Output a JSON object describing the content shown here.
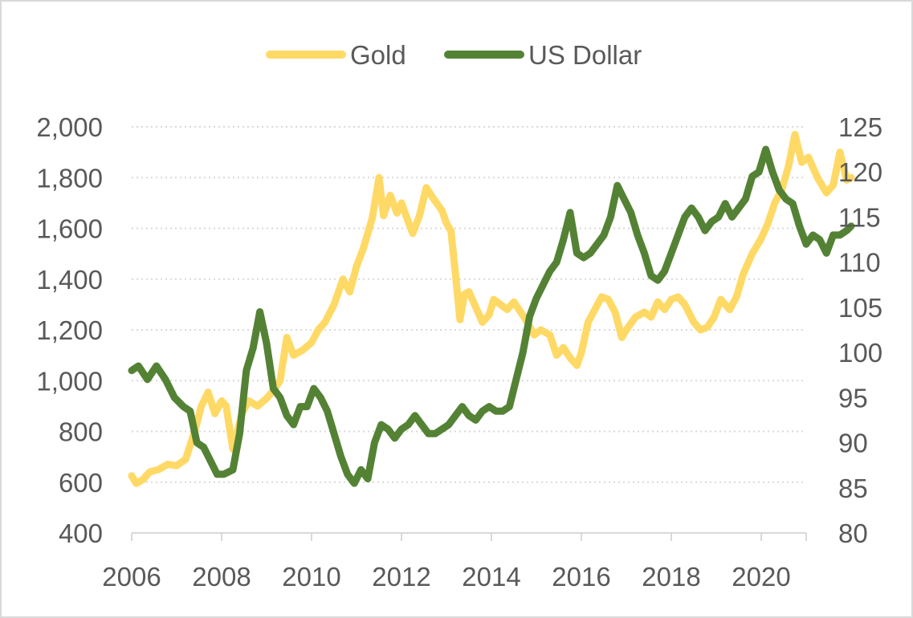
{
  "chart_data": {
    "type": "line",
    "title": "",
    "legend_position": "top",
    "grid": "horizontal dotted",
    "x": {
      "range": [
        2006,
        2021
      ],
      "tick_labels": [
        "2006",
        "2008",
        "2010",
        "2012",
        "2014",
        "2016",
        "2018",
        "2020"
      ],
      "tick_values": [
        2006,
        2008,
        2010,
        2012,
        2014,
        2016,
        2018,
        2020
      ]
    },
    "y_left": {
      "range": [
        400,
        2000
      ],
      "tick_labels": [
        "400",
        "600",
        "800",
        "1,000",
        "1,200",
        "1,400",
        "1,600",
        "1,800",
        "2,000"
      ],
      "tick_values": [
        400,
        600,
        800,
        1000,
        1200,
        1400,
        1600,
        1800,
        2000
      ]
    },
    "y_right": {
      "range": [
        80,
        125
      ],
      "tick_labels": [
        "80",
        "85",
        "90",
        "95",
        "100",
        "105",
        "110",
        "115",
        "120",
        "125"
      ],
      "tick_values": [
        80,
        85,
        90,
        95,
        100,
        105,
        110,
        115,
        120,
        125
      ]
    },
    "series": [
      {
        "name": "Gold",
        "axis": "left",
        "color": "#ffd966",
        "points": [
          [
            2006.0,
            625
          ],
          [
            2006.1,
            595
          ],
          [
            2006.25,
            610
          ],
          [
            2006.4,
            640
          ],
          [
            2006.6,
            650
          ],
          [
            2006.8,
            670
          ],
          [
            2007.0,
            665
          ],
          [
            2007.2,
            690
          ],
          [
            2007.4,
            800
          ],
          [
            2007.55,
            900
          ],
          [
            2007.7,
            955
          ],
          [
            2007.85,
            870
          ],
          [
            2008.0,
            920
          ],
          [
            2008.1,
            900
          ],
          [
            2008.25,
            730
          ],
          [
            2008.45,
            870
          ],
          [
            2008.6,
            920
          ],
          [
            2008.8,
            900
          ],
          [
            2009.0,
            930
          ],
          [
            2009.15,
            960
          ],
          [
            2009.3,
            1000
          ],
          [
            2009.45,
            1170
          ],
          [
            2009.6,
            1100
          ],
          [
            2009.8,
            1120
          ],
          [
            2010.0,
            1150
          ],
          [
            2010.15,
            1200
          ],
          [
            2010.3,
            1230
          ],
          [
            2010.5,
            1300
          ],
          [
            2010.7,
            1400
          ],
          [
            2010.85,
            1350
          ],
          [
            2011.0,
            1450
          ],
          [
            2011.15,
            1520
          ],
          [
            2011.35,
            1640
          ],
          [
            2011.5,
            1800
          ],
          [
            2011.6,
            1650
          ],
          [
            2011.75,
            1730
          ],
          [
            2011.9,
            1660
          ],
          [
            2012.0,
            1700
          ],
          [
            2012.1,
            1650
          ],
          [
            2012.25,
            1580
          ],
          [
            2012.4,
            1650
          ],
          [
            2012.55,
            1760
          ],
          [
            2012.7,
            1720
          ],
          [
            2012.9,
            1670
          ],
          [
            2013.0,
            1620
          ],
          [
            2013.1,
            1590
          ],
          [
            2013.2,
            1420
          ],
          [
            2013.3,
            1240
          ],
          [
            2013.4,
            1340
          ],
          [
            2013.5,
            1350
          ],
          [
            2013.65,
            1290
          ],
          [
            2013.8,
            1230
          ],
          [
            2013.95,
            1260
          ],
          [
            2014.05,
            1320
          ],
          [
            2014.2,
            1300
          ],
          [
            2014.35,
            1280
          ],
          [
            2014.5,
            1310
          ],
          [
            2014.65,
            1270
          ],
          [
            2014.8,
            1230
          ],
          [
            2014.95,
            1180
          ],
          [
            2015.1,
            1200
          ],
          [
            2015.3,
            1180
          ],
          [
            2015.45,
            1100
          ],
          [
            2015.6,
            1130
          ],
          [
            2015.75,
            1090
          ],
          [
            2015.9,
            1060
          ],
          [
            2016.0,
            1110
          ],
          [
            2016.15,
            1230
          ],
          [
            2016.3,
            1280
          ],
          [
            2016.45,
            1330
          ],
          [
            2016.6,
            1320
          ],
          [
            2016.75,
            1270
          ],
          [
            2016.9,
            1170
          ],
          [
            2017.0,
            1200
          ],
          [
            2017.2,
            1250
          ],
          [
            2017.4,
            1270
          ],
          [
            2017.55,
            1250
          ],
          [
            2017.7,
            1310
          ],
          [
            2017.85,
            1280
          ],
          [
            2018.0,
            1320
          ],
          [
            2018.15,
            1330
          ],
          [
            2018.3,
            1300
          ],
          [
            2018.5,
            1230
          ],
          [
            2018.65,
            1200
          ],
          [
            2018.8,
            1210
          ],
          [
            2018.95,
            1250
          ],
          [
            2019.1,
            1320
          ],
          [
            2019.3,
            1280
          ],
          [
            2019.45,
            1330
          ],
          [
            2019.6,
            1420
          ],
          [
            2019.8,
            1500
          ],
          [
            2020.0,
            1560
          ],
          [
            2020.15,
            1620
          ],
          [
            2020.3,
            1700
          ],
          [
            2020.45,
            1750
          ],
          [
            2020.6,
            1840
          ],
          [
            2020.75,
            1970
          ],
          [
            2020.9,
            1860
          ],
          [
            2021.05,
            1880
          ],
          [
            2021.25,
            1800
          ],
          [
            2021.45,
            1740
          ],
          [
            2021.6,
            1770
          ],
          [
            2021.75,
            1900
          ],
          [
            2021.9,
            1790
          ],
          [
            2022.0,
            1800
          ]
        ]
      },
      {
        "name": "US Dollar",
        "axis": "right",
        "color": "#548235",
        "points": [
          [
            2006.0,
            98
          ],
          [
            2006.15,
            98.5
          ],
          [
            2006.35,
            97
          ],
          [
            2006.55,
            98.5
          ],
          [
            2006.75,
            97
          ],
          [
            2006.95,
            95
          ],
          [
            2007.15,
            94
          ],
          [
            2007.3,
            93.5
          ],
          [
            2007.45,
            90
          ],
          [
            2007.6,
            89.5
          ],
          [
            2007.75,
            88
          ],
          [
            2007.9,
            86.5
          ],
          [
            2008.05,
            86.5
          ],
          [
            2008.25,
            87
          ],
          [
            2008.4,
            91
          ],
          [
            2008.55,
            98
          ],
          [
            2008.7,
            100.5
          ],
          [
            2008.85,
            104.5
          ],
          [
            2009.0,
            101
          ],
          [
            2009.15,
            96
          ],
          [
            2009.3,
            95
          ],
          [
            2009.45,
            93
          ],
          [
            2009.6,
            92
          ],
          [
            2009.75,
            94
          ],
          [
            2009.9,
            94
          ],
          [
            2010.05,
            96
          ],
          [
            2010.2,
            95
          ],
          [
            2010.35,
            93.5
          ],
          [
            2010.5,
            91
          ],
          [
            2010.65,
            88.5
          ],
          [
            2010.8,
            86.5
          ],
          [
            2010.95,
            85.5
          ],
          [
            2011.1,
            87
          ],
          [
            2011.25,
            86
          ],
          [
            2011.4,
            90
          ],
          [
            2011.55,
            92
          ],
          [
            2011.7,
            91.5
          ],
          [
            2011.85,
            90.5
          ],
          [
            2012.0,
            91.5
          ],
          [
            2012.15,
            92
          ],
          [
            2012.3,
            93
          ],
          [
            2012.45,
            92
          ],
          [
            2012.6,
            91
          ],
          [
            2012.75,
            91
          ],
          [
            2012.9,
            91.5
          ],
          [
            2013.05,
            92
          ],
          [
            2013.2,
            93
          ],
          [
            2013.35,
            94
          ],
          [
            2013.5,
            93
          ],
          [
            2013.65,
            92.5
          ],
          [
            2013.8,
            93.5
          ],
          [
            2013.95,
            94
          ],
          [
            2014.1,
            93.5
          ],
          [
            2014.25,
            93.5
          ],
          [
            2014.4,
            94
          ],
          [
            2014.55,
            97
          ],
          [
            2014.7,
            100
          ],
          [
            2014.85,
            104
          ],
          [
            2015.0,
            106
          ],
          [
            2015.15,
            107.5
          ],
          [
            2015.3,
            109
          ],
          [
            2015.45,
            110
          ],
          [
            2015.6,
            112.5
          ],
          [
            2015.75,
            115.5
          ],
          [
            2015.9,
            111
          ],
          [
            2016.05,
            110.5
          ],
          [
            2016.2,
            111
          ],
          [
            2016.35,
            112
          ],
          [
            2016.5,
            113
          ],
          [
            2016.65,
            115
          ],
          [
            2016.8,
            118.5
          ],
          [
            2016.95,
            117
          ],
          [
            2017.1,
            115.5
          ],
          [
            2017.25,
            113
          ],
          [
            2017.4,
            111
          ],
          [
            2017.55,
            108.5
          ],
          [
            2017.7,
            108
          ],
          [
            2017.85,
            109
          ],
          [
            2018.0,
            111
          ],
          [
            2018.15,
            113
          ],
          [
            2018.3,
            115
          ],
          [
            2018.45,
            116
          ],
          [
            2018.6,
            115
          ],
          [
            2018.75,
            113.5
          ],
          [
            2018.9,
            114.5
          ],
          [
            2019.05,
            115
          ],
          [
            2019.2,
            116.5
          ],
          [
            2019.35,
            115
          ],
          [
            2019.5,
            116
          ],
          [
            2019.65,
            117
          ],
          [
            2019.8,
            119.5
          ],
          [
            2019.95,
            120
          ],
          [
            2020.1,
            122.5
          ],
          [
            2020.25,
            120
          ],
          [
            2020.4,
            118
          ],
          [
            2020.55,
            117
          ],
          [
            2020.7,
            116.5
          ],
          [
            2020.85,
            114
          ],
          [
            2021.0,
            112
          ],
          [
            2021.15,
            113
          ],
          [
            2021.3,
            112.5
          ],
          [
            2021.45,
            111
          ],
          [
            2021.6,
            113
          ],
          [
            2021.75,
            113
          ],
          [
            2021.9,
            113.5
          ],
          [
            2022.0,
            114
          ]
        ]
      }
    ]
  }
}
